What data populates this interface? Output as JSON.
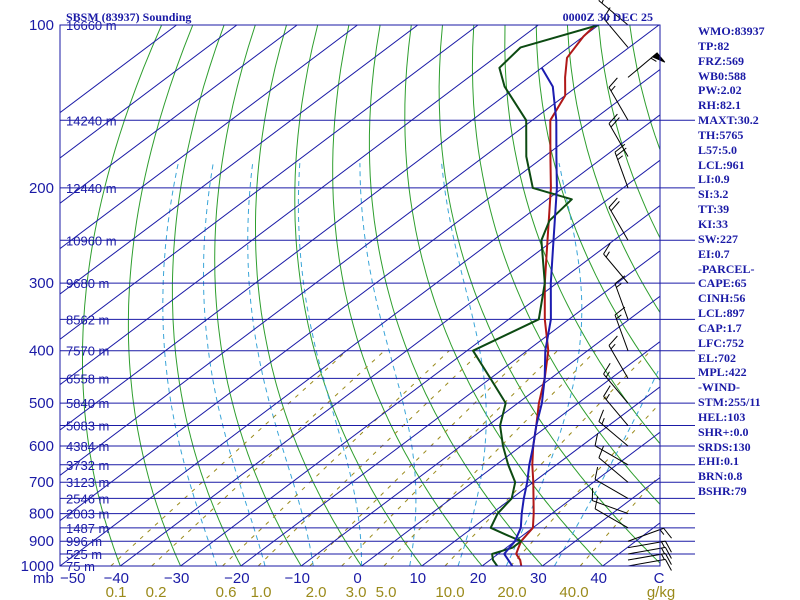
{
  "header": {
    "station_title": "SBSM (83937) Sounding",
    "valid_time": "0000Z 30 DEC 25"
  },
  "indices": [
    "WMO:83937",
    "TP:82",
    "FRZ:569",
    "WB0:588",
    "PW:2.02",
    "RH:82.1",
    "MAXT:30.2",
    "TH:5765",
    "L57:5.0",
    "LCL:961",
    "LI:0.9",
    "SI:3.2",
    "TT:39",
    "KI:33",
    "SW:227",
    "EI:0.7",
    "-PARCEL-",
    "CAPE:65",
    "CINH:56",
    "LCL:897",
    "CAP:1.7",
    "LFC:752",
    "EL:702",
    "MPL:422",
    "-WIND-",
    "STM:255/11",
    "HEL:103",
    "SHR+:0.0",
    "SRDS:130",
    "EHI:0.1",
    "BRN:0.8",
    "BSHR:79"
  ],
  "colors": {
    "frame": "#1a1aa6",
    "isobar": "#1a1aa6",
    "isotherm": "#1a1aa6",
    "dry_adiabat": "#2e9e2e",
    "moist_adiabat": "#3aa5d8",
    "mixing_ratio": "#9a8a1a",
    "temperature": "#b01818",
    "dewpoint": "#0c4a12",
    "parcel": "#1c1cb0",
    "wind_barb": "#000000",
    "label": "#1a1aa6",
    "mixing_label": "#9a8a1a"
  },
  "chart_data": {
    "type": "line",
    "title": "SBSM (83937) Sounding",
    "subtitle": "0000Z 30 DEC 25",
    "xlabel": "",
    "ylabel": "mb",
    "x_scale": "skew-T temperature (°C)",
    "y_scale": "log pressure",
    "xlim": [
      -50,
      50
    ],
    "ylim": [
      1000,
      100
    ],
    "pressure_ticks": [
      100,
      200,
      300,
      400,
      500,
      600,
      700,
      800,
      900,
      1000
    ],
    "temperature_ticks": [
      "−50",
      "−40",
      "−30",
      "−20",
      "−10",
      "0",
      "10",
      "20",
      "30",
      "40",
      "C"
    ],
    "mixing_ratio_labels": [
      "0.1",
      "0.2",
      "0.6",
      "1.0",
      "2.0",
      "3.0",
      "5.0",
      "10.0",
      "20.0",
      "40.0",
      "g/kg"
    ],
    "heights": [
      {
        "p": 100,
        "label": "16660 m"
      },
      {
        "p": 150,
        "label": "14240 m"
      },
      {
        "p": 200,
        "label": "12440 m"
      },
      {
        "p": 250,
        "label": "10960 m"
      },
      {
        "p": 300,
        "label": "9680 m"
      },
      {
        "p": 350,
        "label": "8562 m"
      },
      {
        "p": 400,
        "label": "7570 m"
      },
      {
        "p": 450,
        "label": "6558 m"
      },
      {
        "p": 500,
        "label": "5840 m"
      },
      {
        "p": 550,
        "label": "5083 m"
      },
      {
        "p": 600,
        "label": "4384 m"
      },
      {
        "p": 650,
        "label": "3732 m"
      },
      {
        "p": 700,
        "label": "3123 m"
      },
      {
        "p": 750,
        "label": "2546 m"
      },
      {
        "p": 800,
        "label": "2003 m"
      },
      {
        "p": 850,
        "label": "1487 m"
      },
      {
        "p": 900,
        "label": "996 m"
      },
      {
        "p": 950,
        "label": "525 m"
      },
      {
        "p": 1000,
        "label": "75 m"
      }
    ],
    "series": [
      {
        "name": "Temperature",
        "points": [
          [
            1000,
            26.5
          ],
          [
            975,
            25
          ],
          [
            950,
            23
          ],
          [
            925,
            22
          ],
          [
            900,
            21
          ],
          [
            850,
            20
          ],
          [
            800,
            17
          ],
          [
            700,
            10
          ],
          [
            650,
            6
          ],
          [
            600,
            2
          ],
          [
            550,
            -2
          ],
          [
            500,
            -6.5
          ],
          [
            450,
            -11
          ],
          [
            400,
            -16.5
          ],
          [
            350,
            -24
          ],
          [
            300,
            -32
          ],
          [
            250,
            -41
          ],
          [
            200,
            -52
          ],
          [
            175,
            -59
          ],
          [
            150,
            -67
          ],
          [
            135,
            -70
          ],
          [
            125,
            -74
          ],
          [
            115,
            -78
          ],
          [
            105,
            -80
          ],
          [
            100,
            -80.5
          ]
        ]
      },
      {
        "name": "Dewpoint",
        "points": [
          [
            1000,
            22.5
          ],
          [
            975,
            20.5
          ],
          [
            950,
            19
          ],
          [
            925,
            21
          ],
          [
            900,
            21
          ],
          [
            875,
            17
          ],
          [
            850,
            13
          ],
          [
            800,
            11
          ],
          [
            750,
            10
          ],
          [
            700,
            7
          ],
          [
            650,
            2
          ],
          [
            600,
            -3
          ],
          [
            550,
            -8
          ],
          [
            500,
            -12
          ],
          [
            450,
            -20
          ],
          [
            400,
            -29
          ],
          [
            350,
            -25
          ],
          [
            300,
            -32
          ],
          [
            250,
            -42
          ],
          [
            230,
            -45
          ],
          [
            210,
            -46
          ],
          [
            200,
            -55
          ],
          [
            175,
            -63
          ],
          [
            150,
            -71
          ],
          [
            130,
            -82
          ],
          [
            120,
            -87
          ],
          [
            110,
            -88
          ],
          [
            100,
            -80
          ]
        ]
      },
      {
        "name": "Parcel",
        "points": [
          [
            1000,
            25
          ],
          [
            950,
            21
          ],
          [
            900,
            20
          ],
          [
            850,
            18
          ],
          [
            800,
            15
          ],
          [
            750,
            12
          ],
          [
            700,
            9
          ],
          [
            650,
            5.5
          ],
          [
            600,
            2
          ],
          [
            550,
            -2
          ],
          [
            500,
            -6
          ],
          [
            450,
            -11
          ],
          [
            400,
            -17
          ],
          [
            350,
            -23
          ],
          [
            300,
            -31
          ],
          [
            250,
            -40
          ],
          [
            200,
            -51
          ],
          [
            175,
            -58
          ],
          [
            150,
            -66
          ],
          [
            130,
            -74
          ],
          [
            120,
            -80
          ]
        ]
      }
    ],
    "wind": [
      {
        "p": 1000,
        "dir": 80,
        "spd": 10
      },
      {
        "p": 975,
        "dir": 80,
        "spd": 15
      },
      {
        "p": 950,
        "dir": 80,
        "spd": 15
      },
      {
        "p": 925,
        "dir": 80,
        "spd": 15
      },
      {
        "p": 900,
        "dir": 70,
        "spd": 15
      },
      {
        "p": 850,
        "dir": 300,
        "spd": 10
      },
      {
        "p": 800,
        "dir": 290,
        "spd": 10
      },
      {
        "p": 750,
        "dir": 300,
        "spd": 10
      },
      {
        "p": 700,
        "dir": 310,
        "spd": 10
      },
      {
        "p": 650,
        "dir": 300,
        "spd": 10
      },
      {
        "p": 600,
        "dir": 310,
        "spd": 15
      },
      {
        "p": 550,
        "dir": 320,
        "spd": 15
      },
      {
        "p": 500,
        "dir": 320,
        "spd": 15
      },
      {
        "p": 450,
        "dir": 330,
        "spd": 15
      },
      {
        "p": 400,
        "dir": 340,
        "spd": 15
      },
      {
        "p": 350,
        "dir": 340,
        "spd": 15
      },
      {
        "p": 300,
        "dir": 320,
        "spd": 15
      },
      {
        "p": 250,
        "dir": 330,
        "spd": 20
      },
      {
        "p": 200,
        "dir": 340,
        "spd": 25
      },
      {
        "p": 175,
        "dir": 330,
        "spd": 20
      },
      {
        "p": 150,
        "dir": 330,
        "spd": 15
      },
      {
        "p": 125,
        "dir": 50,
        "spd": 55
      },
      {
        "p": 110,
        "dir": 320,
        "spd": 15
      },
      {
        "p": 100,
        "dir": 310,
        "spd": 20
      }
    ]
  }
}
